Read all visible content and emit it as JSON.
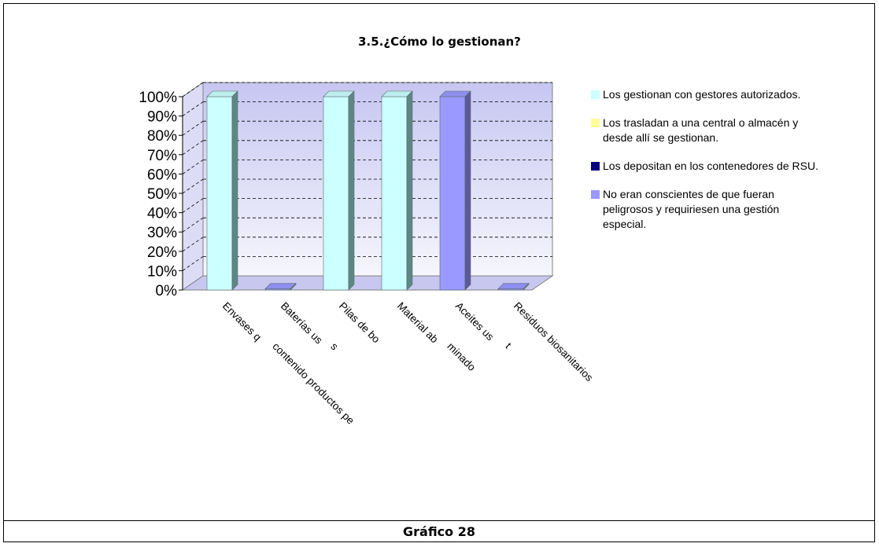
{
  "caption": "Gráfico 28",
  "chart_data": {
    "type": "bar",
    "title": "3.5.¿Cómo lo gestionan?",
    "categories": [
      "Envases que han contenido productos peligrosos",
      "Baterías usadas",
      "Pilas de botón",
      "Material absorbente contaminado",
      "Aceites usados",
      "Residuos biosanitarios"
    ],
    "category_labels_visible": [
      [
        "Envases q",
        "contenido productos pe"
      ],
      [
        "Baterías us",
        "s"
      ],
      [
        "Pilas de bo"
      ],
      [
        "Material ab",
        "minado"
      ],
      [
        "Aceites us",
        "t"
      ],
      [
        "Residuos biosanitarios"
      ]
    ],
    "series": [
      {
        "name": "Los gestionan con gestores autorizados.",
        "color": "#ccffff",
        "values": [
          100,
          0,
          100,
          100,
          0,
          0
        ]
      },
      {
        "name": "Los trasladan a una central o almacén y desde allí se gestionan.",
        "color": "#ffff99",
        "values": [
          0,
          0,
          0,
          0,
          0,
          0
        ]
      },
      {
        "name": "Los depositan en los contenedores de RSU.",
        "color": "#000080",
        "values": [
          0,
          0,
          0,
          0,
          0,
          0
        ]
      },
      {
        "name": "No eran conscientes de que fueran peligrosos y requiriesen una gestión especial.",
        "color": "#9999ff",
        "values": [
          0,
          0,
          0,
          0,
          100,
          0
        ]
      }
    ],
    "y_ticks": [
      "0%",
      "10%",
      "20%",
      "30%",
      "40%",
      "50%",
      "60%",
      "70%",
      "80%",
      "90%",
      "100%"
    ],
    "ylim": [
      0,
      100
    ],
    "grid": true,
    "legend_position": "right",
    "colors": {
      "wall": "#d8d8f6",
      "floor": "#c7c7f0",
      "grid": "#000000"
    }
  }
}
